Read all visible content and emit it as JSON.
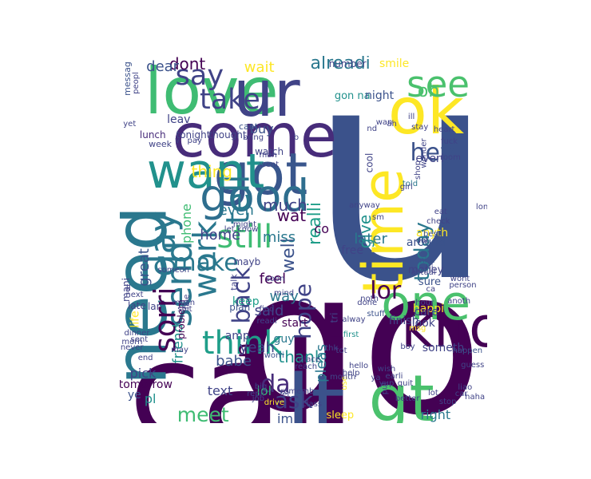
{
  "cloud": {
    "words": [
      {
        "text": "u",
        "color": "#3b528b"
      },
      {
        "text": "go",
        "color": "#440154"
      },
      {
        "text": "call",
        "color": "#440154"
      },
      {
        "text": "love",
        "color": "#3fbc73"
      },
      {
        "text": "ur",
        "color": "#404387"
      },
      {
        "text": "come",
        "color": "#472c7a"
      },
      {
        "text": "got",
        "color": "#39568c"
      },
      {
        "text": "want",
        "color": "#21918c"
      },
      {
        "text": "ok",
        "color": "#fde725"
      },
      {
        "text": "time",
        "color": "#fde725"
      },
      {
        "text": "lt",
        "color": "#3b528b"
      },
      {
        "text": "gt",
        "color": "#4ac16d"
      },
      {
        "text": "know",
        "color": "#440154"
      },
      {
        "text": "need",
        "color": "#2a788e"
      },
      {
        "text": "one",
        "color": "#4ac16d"
      },
      {
        "text": "good",
        "color": "#2e6e8e"
      },
      {
        "text": "think",
        "color": "#1f9e89"
      },
      {
        "text": "say",
        "color": "#404387"
      },
      {
        "text": "see",
        "color": "#4ac16d"
      },
      {
        "text": "take",
        "color": "#404387"
      },
      {
        "text": "tell",
        "color": "#2a788e"
      },
      {
        "text": "work",
        "color": "#2a788e"
      },
      {
        "text": "still",
        "color": "#3fbc73"
      },
      {
        "text": "send",
        "color": "#2a788e"
      },
      {
        "text": "day",
        "color": "#2a788e"
      },
      {
        "text": "make",
        "color": "#2a788e"
      },
      {
        "text": "back",
        "color": "#404387"
      },
      {
        "text": "sorri",
        "color": "#440154"
      },
      {
        "text": "da",
        "color": "#472c7a"
      },
      {
        "text": "meet",
        "color": "#3fbc73"
      },
      {
        "text": "ask",
        "color": "#404387"
      },
      {
        "text": "n",
        "color": "#440154"
      },
      {
        "text": "today",
        "color": "#2a788e"
      },
      {
        "text": "hope",
        "color": "#404387"
      },
      {
        "text": "lor",
        "color": "#440154"
      },
      {
        "text": "oh",
        "color": "#4ac16d"
      },
      {
        "text": "hey",
        "color": "#3b528b"
      },
      {
        "text": "alreadi",
        "color": "#2a788e"
      },
      {
        "text": "dont",
        "color": "#440154"
      },
      {
        "text": "dear",
        "color": "#3b528b"
      },
      {
        "text": "wait",
        "color": "#fde725"
      },
      {
        "text": "thing",
        "color": "#fde725"
      },
      {
        "text": "much",
        "color": "#404387"
      },
      {
        "text": "even",
        "color": "#2a788e"
      },
      {
        "text": "realli",
        "color": "#1f9e89"
      },
      {
        "text": "well",
        "color": "#3b528b"
      },
      {
        "text": "give",
        "color": "#21918c"
      },
      {
        "text": "wat",
        "color": "#440154"
      },
      {
        "text": "later",
        "color": "#2a788e"
      },
      {
        "text": "home",
        "color": "#404387"
      },
      {
        "text": "miss",
        "color": "#2a788e"
      },
      {
        "text": "feel",
        "color": "#440154"
      },
      {
        "text": "way",
        "color": "#2a788e"
      },
      {
        "text": "said",
        "color": "#404387"
      },
      {
        "text": "yeah",
        "color": "#404387"
      },
      {
        "text": "great",
        "color": "#3b528b"
      },
      {
        "text": "friend",
        "color": "#21918c"
      },
      {
        "text": "lol",
        "color": "#35b779"
      },
      {
        "text": "text",
        "color": "#404387"
      },
      {
        "text": "babe",
        "color": "#3b528b"
      },
      {
        "text": "thank",
        "color": "#21918c"
      },
      {
        "text": "pleas",
        "color": "#2a788e"
      },
      {
        "text": "right",
        "color": "#2a788e"
      },
      {
        "text": "sleep",
        "color": "#fde725"
      },
      {
        "text": "im",
        "color": "#3b528b"
      },
      {
        "text": "phone",
        "color": "#3fbc73"
      },
      {
        "text": "pick",
        "color": "#404387"
      },
      {
        "text": "pl",
        "color": "#21918c"
      },
      {
        "text": "ye",
        "color": "#3b528b"
      },
      {
        "text": "tomorrow",
        "color": "#440154"
      },
      {
        "text": "gon na",
        "color": "#21918c"
      },
      {
        "text": "night",
        "color": "#3b528b"
      },
      {
        "text": "number",
        "color": "#404387"
      },
      {
        "text": "smile",
        "color": "#fde725"
      },
      {
        "text": "buy",
        "color": "#3b528b"
      },
      {
        "text": "leav",
        "color": "#404387"
      },
      {
        "text": "lunch",
        "color": "#472c7a"
      },
      {
        "text": "tonight",
        "color": "#404387"
      },
      {
        "text": "thought",
        "color": "#404387"
      },
      {
        "text": "cant",
        "color": "#3b528b"
      },
      {
        "text": "watch",
        "color": "#404387"
      },
      {
        "text": "messag",
        "color": "#3b528b"
      },
      {
        "text": "week",
        "color": "#404387"
      },
      {
        "text": "free",
        "color": "#404387"
      },
      {
        "text": "around",
        "color": "#3b528b"
      },
      {
        "text": "anyth",
        "color": "#fde725"
      },
      {
        "text": "money",
        "color": "#404387"
      },
      {
        "text": "sure",
        "color": "#3b528b"
      },
      {
        "text": "happi",
        "color": "#fde725"
      },
      {
        "text": "finish",
        "color": "#404387"
      },
      {
        "text": "look",
        "color": "#404387"
      },
      {
        "text": "someth",
        "color": "#404387"
      },
      {
        "text": "guy",
        "color": "#2a788e"
      },
      {
        "text": "keep",
        "color": "#1f9e89"
      },
      {
        "text": "amp",
        "color": "#404387"
      },
      {
        "text": "plan",
        "color": "#3b528b"
      },
      {
        "text": "life",
        "color": "#fde725"
      },
      {
        "text": "start",
        "color": "#440154"
      },
      {
        "text": "co",
        "color": "#440154"
      },
      {
        "text": "tri",
        "color": "#404387"
      },
      {
        "text": "alway",
        "color": "#404387"
      },
      {
        "text": "stuff",
        "color": "#3b528b"
      },
      {
        "text": "first",
        "color": "#21918c"
      },
      {
        "text": "place",
        "color": "#404387"
      },
      {
        "text": "worri",
        "color": "#3b528b"
      },
      {
        "text": "talk",
        "color": "#404387"
      },
      {
        "text": "mayb",
        "color": "#404387"
      },
      {
        "text": "readi",
        "color": "#404387"
      },
      {
        "text": "problem",
        "color": "#440154"
      },
      {
        "text": "mani",
        "color": "#404387"
      },
      {
        "text": "next",
        "color": "#404387"
      },
      {
        "text": "late",
        "color": "#404387"
      },
      {
        "text": "lar",
        "color": "#404387"
      },
      {
        "text": "ll",
        "color": "#404387"
      },
      {
        "text": "dat",
        "color": "#404387"
      },
      {
        "text": "hi",
        "color": "#404387"
      },
      {
        "text": "nite",
        "color": "#3b528b"
      },
      {
        "text": "best",
        "color": "#3b528b"
      },
      {
        "text": "check",
        "color": "#404387"
      },
      {
        "text": "eat",
        "color": "#404387"
      },
      {
        "text": "long",
        "color": "#404387"
      },
      {
        "text": "wonder",
        "color": "#404387"
      },
      {
        "text": "room",
        "color": "#404387"
      },
      {
        "text": "stay",
        "color": "#404387"
      },
      {
        "text": "heart",
        "color": "#404387"
      },
      {
        "text": "cool",
        "color": "#404387"
      },
      {
        "text": "told",
        "color": "#2a788e"
      },
      {
        "text": "everi",
        "color": "#404387"
      },
      {
        "text": "ca",
        "color": "#404387"
      },
      {
        "text": "hour",
        "color": "#404387"
      },
      {
        "text": "care",
        "color": "#404387"
      },
      {
        "text": "msg",
        "color": "#fde725"
      },
      {
        "text": "boy",
        "color": "#404387"
      },
      {
        "text": "happen",
        "color": "#3b528b"
      },
      {
        "text": "guess",
        "color": "#404387"
      },
      {
        "text": "haha",
        "color": "#404387"
      },
      {
        "text": "liao",
        "color": "#404387"
      },
      {
        "text": "car",
        "color": "#404387"
      },
      {
        "text": "stop",
        "color": "#404387"
      },
      {
        "text": "lot",
        "color": "#404387"
      },
      {
        "text": "better",
        "color": "#404387"
      },
      {
        "text": "quit",
        "color": "#404387"
      },
      {
        "text": "wish",
        "color": "#404387"
      },
      {
        "text": "earli",
        "color": "#404387"
      },
      {
        "text": "ya",
        "color": "#404387"
      },
      {
        "text": "yup",
        "color": "#404387"
      },
      {
        "text": "put",
        "color": "#404387"
      },
      {
        "text": "use",
        "color": "#fde725"
      },
      {
        "text": "hello",
        "color": "#404387"
      },
      {
        "text": "help",
        "color": "#404387"
      },
      {
        "text": "month",
        "color": "#404387"
      },
      {
        "text": "rememb",
        "color": "#404387"
      },
      {
        "text": "class",
        "color": "#404387"
      },
      {
        "text": "let",
        "color": "#404387"
      },
      {
        "text": "big",
        "color": "#404387"
      },
      {
        "text": "job",
        "color": "#404387"
      },
      {
        "text": "repli",
        "color": "#404387"
      },
      {
        "text": "drive",
        "color": "#fde725"
      },
      {
        "text": "reach",
        "color": "#404387"
      },
      {
        "text": "dinner",
        "color": "#404387"
      },
      {
        "text": "sent",
        "color": "#404387"
      },
      {
        "text": "morn",
        "color": "#404387"
      },
      {
        "text": "never",
        "color": "#404387"
      },
      {
        "text": "may",
        "color": "#404387"
      },
      {
        "text": "end",
        "color": "#404387"
      },
      {
        "text": "fine",
        "color": "#404387"
      },
      {
        "text": "mean",
        "color": "#404387"
      },
      {
        "text": "shit",
        "color": "#404387"
      },
      {
        "text": "find",
        "color": "#404387"
      },
      {
        "text": "tot",
        "color": "#404387"
      },
      {
        "text": "thk",
        "color": "#404387"
      },
      {
        "text": "done",
        "color": "#404387"
      },
      {
        "text": "noth",
        "color": "#404387"
      },
      {
        "text": "soon",
        "color": "#404387"
      },
      {
        "text": "mind",
        "color": "#404387"
      },
      {
        "text": "someon",
        "color": "#404387"
      },
      {
        "text": "let know",
        "color": "#404387"
      },
      {
        "text": "might",
        "color": "#404387"
      },
      {
        "text": "went",
        "color": "#404387"
      },
      {
        "text": "man",
        "color": "#404387"
      },
      {
        "text": "bring",
        "color": "#404387"
      },
      {
        "text": "b",
        "color": "#404387"
      },
      {
        "text": "v",
        "color": "#404387"
      },
      {
        "text": "pay",
        "color": "#404387"
      },
      {
        "text": "yet",
        "color": "#404387"
      },
      {
        "text": "peopl",
        "color": "#404387"
      },
      {
        "text": "actual",
        "color": "#404387"
      },
      {
        "text": "person",
        "color": "#404387"
      },
      {
        "text": "wont",
        "color": "#404387"
      },
      {
        "text": "anoth",
        "color": "#404387"
      },
      {
        "text": "fuck",
        "color": "#404387"
      },
      {
        "text": "shop",
        "color": "#404387"
      },
      {
        "text": "anyway",
        "color": "#404387"
      },
      {
        "text": "girl",
        "color": "#404387"
      },
      {
        "text": "sm",
        "color": "#404387"
      },
      {
        "text": "ah",
        "color": "#404387"
      },
      {
        "text": "nd",
        "color": "#404387"
      },
      {
        "text": "wan",
        "color": "#404387"
      },
      {
        "text": "ill",
        "color": "#404387"
      }
    ]
  }
}
